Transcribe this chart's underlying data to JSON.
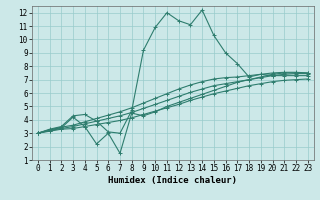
{
  "xlabel": "Humidex (Indice chaleur)",
  "bg_color": "#cce8e8",
  "grid_color": "#99cccc",
  "line_color": "#2e7d6e",
  "xlim": [
    -0.5,
    23.5
  ],
  "ylim": [
    1,
    12.5
  ],
  "xticks": [
    0,
    1,
    2,
    3,
    4,
    5,
    6,
    7,
    8,
    9,
    10,
    11,
    12,
    13,
    14,
    15,
    16,
    17,
    18,
    19,
    20,
    21,
    22,
    23
  ],
  "yticks": [
    1,
    2,
    3,
    4,
    5,
    6,
    7,
    8,
    9,
    10,
    11,
    12
  ],
  "lines": [
    [
      3.0,
      3.15,
      3.3,
      3.35,
      3.5,
      3.65,
      3.8,
      3.95,
      4.15,
      4.4,
      4.65,
      4.9,
      5.15,
      5.45,
      5.7,
      5.95,
      6.15,
      6.35,
      6.55,
      6.7,
      6.85,
      6.95,
      7.0,
      7.05
    ],
    [
      3.0,
      3.2,
      3.35,
      3.5,
      3.7,
      3.9,
      4.1,
      4.3,
      4.55,
      4.85,
      5.15,
      5.45,
      5.75,
      6.05,
      6.3,
      6.55,
      6.7,
      6.85,
      7.0,
      7.15,
      7.3,
      7.4,
      7.45,
      7.45
    ],
    [
      3.0,
      3.25,
      3.45,
      3.6,
      3.85,
      4.1,
      4.35,
      4.6,
      4.9,
      5.25,
      5.6,
      5.95,
      6.3,
      6.6,
      6.85,
      7.05,
      7.15,
      7.2,
      7.3,
      7.4,
      7.5,
      7.55,
      7.55,
      7.5
    ],
    [
      3.0,
      3.25,
      3.4,
      4.2,
      3.5,
      2.2,
      3.0,
      1.5,
      4.5,
      4.3,
      4.6,
      5.0,
      5.3,
      5.6,
      5.9,
      6.2,
      6.5,
      6.8,
      7.0,
      7.2,
      7.4,
      7.5,
      7.5,
      7.5
    ],
    [
      3.0,
      3.3,
      3.5,
      4.3,
      4.4,
      3.9,
      3.1,
      3.0,
      4.7,
      9.2,
      10.9,
      12.0,
      11.4,
      11.1,
      12.2,
      10.3,
      9.0,
      8.2,
      7.2,
      7.4,
      7.3,
      7.3,
      7.3,
      7.3
    ]
  ]
}
